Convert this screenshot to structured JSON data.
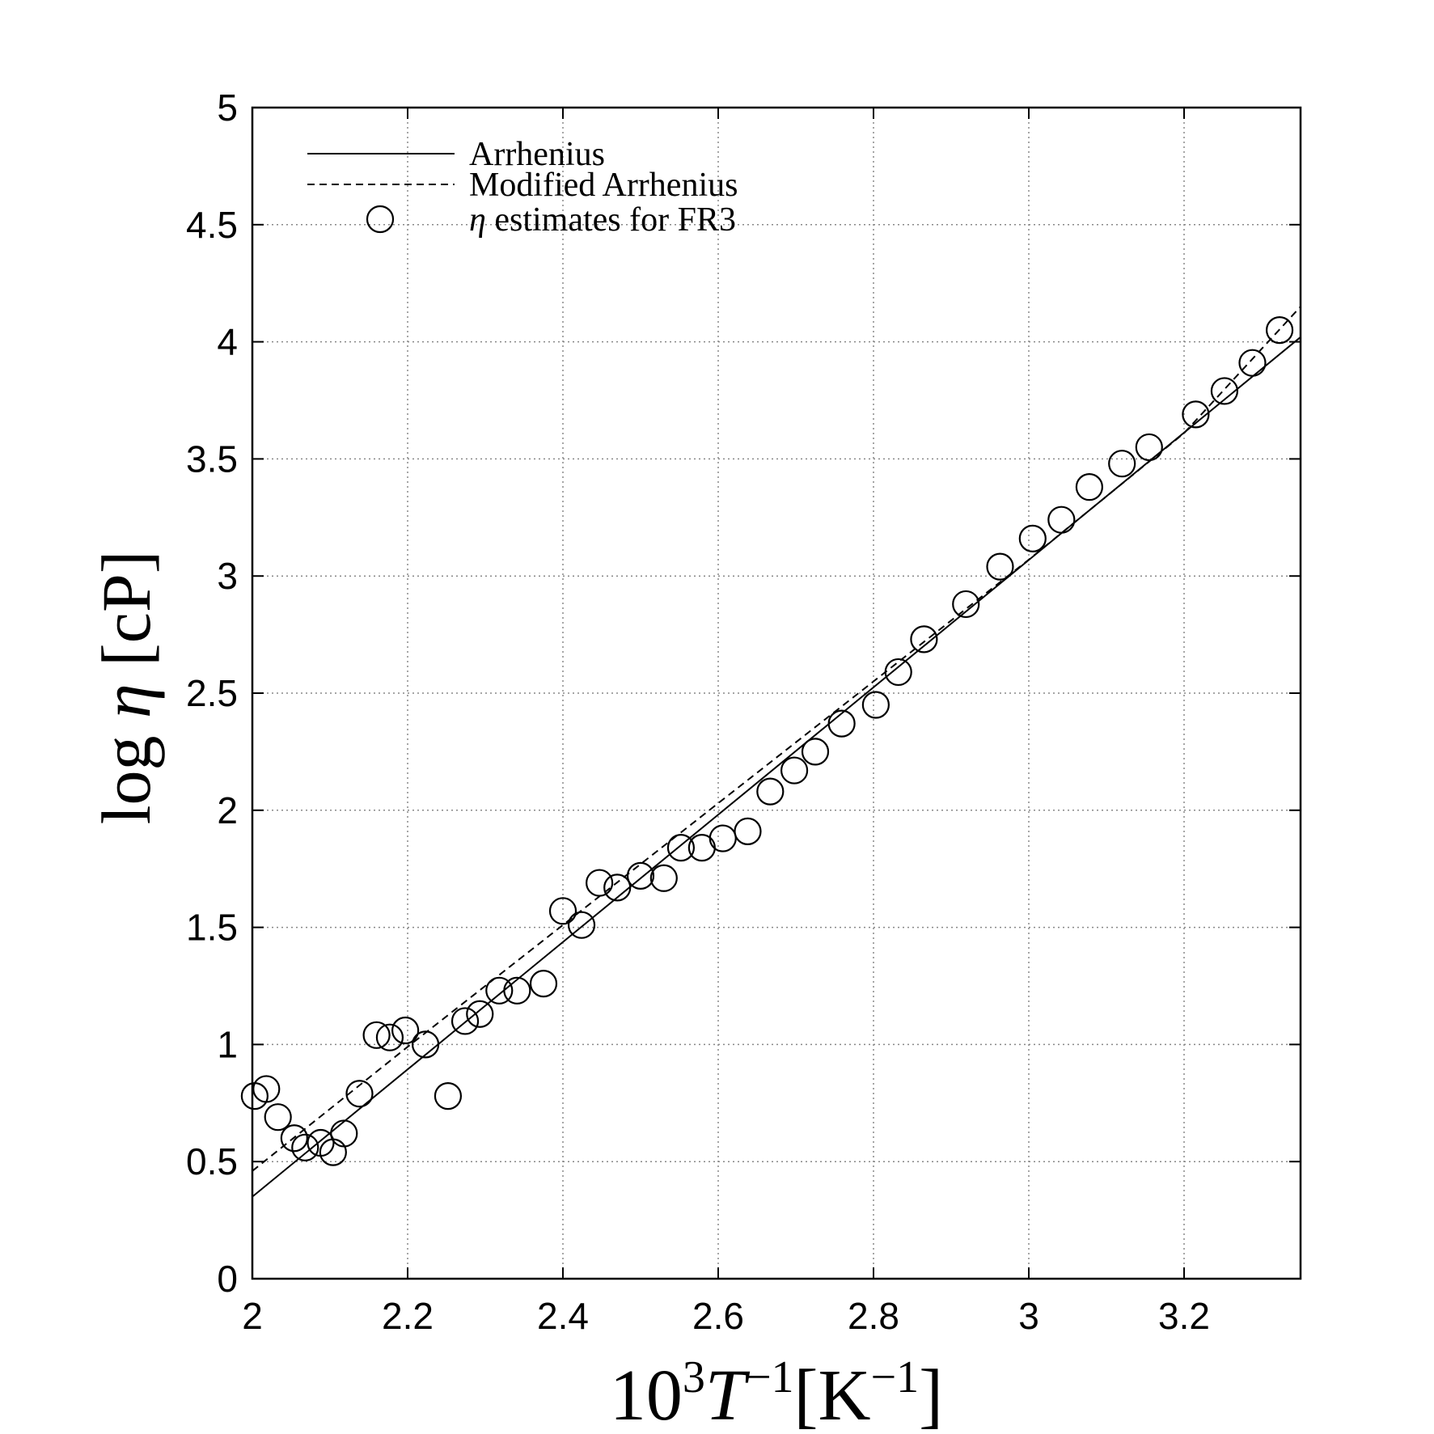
{
  "chart_data": {
    "type": "scatter",
    "title": "",
    "xlabel": {
      "base": "10",
      "exp1": "3",
      "var": "T",
      "exp2": "−1",
      "unit_open": "[K",
      "unit_exp": "−1",
      "unit_close": "]"
    },
    "ylabel": {
      "pre": "log ",
      "var": "η",
      "unit": " [cP]"
    },
    "xlim": [
      2.0,
      3.35
    ],
    "ylim": [
      0,
      5
    ],
    "xticks": [
      2,
      2.2,
      2.4,
      2.6,
      2.8,
      3,
      3.2
    ],
    "xtick_labels": [
      "2",
      "2.2",
      "2.4",
      "2.6",
      "2.8",
      "3",
      "3.2"
    ],
    "yticks": [
      0,
      0.5,
      1,
      1.5,
      2,
      2.5,
      3,
      3.5,
      4,
      4.5,
      5
    ],
    "ytick_labels": [
      "0",
      "0.5",
      "1",
      "1.5",
      "2",
      "2.5",
      "3",
      "3.5",
      "4",
      "4.5",
      "5"
    ],
    "grid": true,
    "legend_position": "top-left",
    "legend": [
      {
        "label": "Arrhenius",
        "style": "solid"
      },
      {
        "label": "Modified Arrhenius",
        "style": "dashed"
      },
      {
        "label_var": "η",
        "label": " estimates for FR3",
        "style": "marker"
      }
    ],
    "series": [
      {
        "name": "Arrhenius",
        "kind": "line",
        "style": "solid",
        "x": [
          2.0,
          3.35
        ],
        "y": [
          0.35,
          4.02
        ]
      },
      {
        "name": "Modified Arrhenius",
        "kind": "line",
        "style": "dashed",
        "x": [
          2.0,
          2.2,
          2.4,
          2.6,
          2.8,
          3.0,
          3.2,
          3.35
        ],
        "y": [
          0.46,
          0.99,
          1.51,
          2.03,
          2.55,
          3.07,
          3.61,
          4.15
        ]
      },
      {
        "name": "η estimates for FR3",
        "kind": "scatter",
        "marker": "circle-open",
        "x": [
          2.003,
          2.018,
          2.033,
          2.054,
          2.068,
          2.088,
          2.104,
          2.118,
          2.138,
          2.16,
          2.177,
          2.197,
          2.223,
          2.252,
          2.274,
          2.293,
          2.318,
          2.341,
          2.375,
          2.4,
          2.424,
          2.447,
          2.47,
          2.5,
          2.53,
          2.552,
          2.579,
          2.606,
          2.638,
          2.667,
          2.698,
          2.725,
          2.759,
          2.803,
          2.832,
          2.865,
          2.919,
          2.963,
          3.005,
          3.042,
          3.078,
          3.12,
          3.155,
          3.215,
          3.252,
          3.288,
          3.323
        ],
        "y": [
          0.78,
          0.81,
          0.69,
          0.6,
          0.56,
          0.58,
          0.54,
          0.62,
          0.79,
          1.04,
          1.03,
          1.06,
          1.0,
          0.78,
          1.1,
          1.13,
          1.23,
          1.23,
          1.26,
          1.57,
          1.51,
          1.69,
          1.67,
          1.72,
          1.71,
          1.84,
          1.84,
          1.88,
          1.91,
          2.08,
          2.17,
          2.25,
          2.37,
          2.45,
          2.59,
          2.73,
          2.88,
          3.04,
          3.16,
          3.24,
          3.38,
          3.48,
          3.55,
          3.69,
          3.79,
          3.91,
          4.05
        ]
      }
    ]
  }
}
